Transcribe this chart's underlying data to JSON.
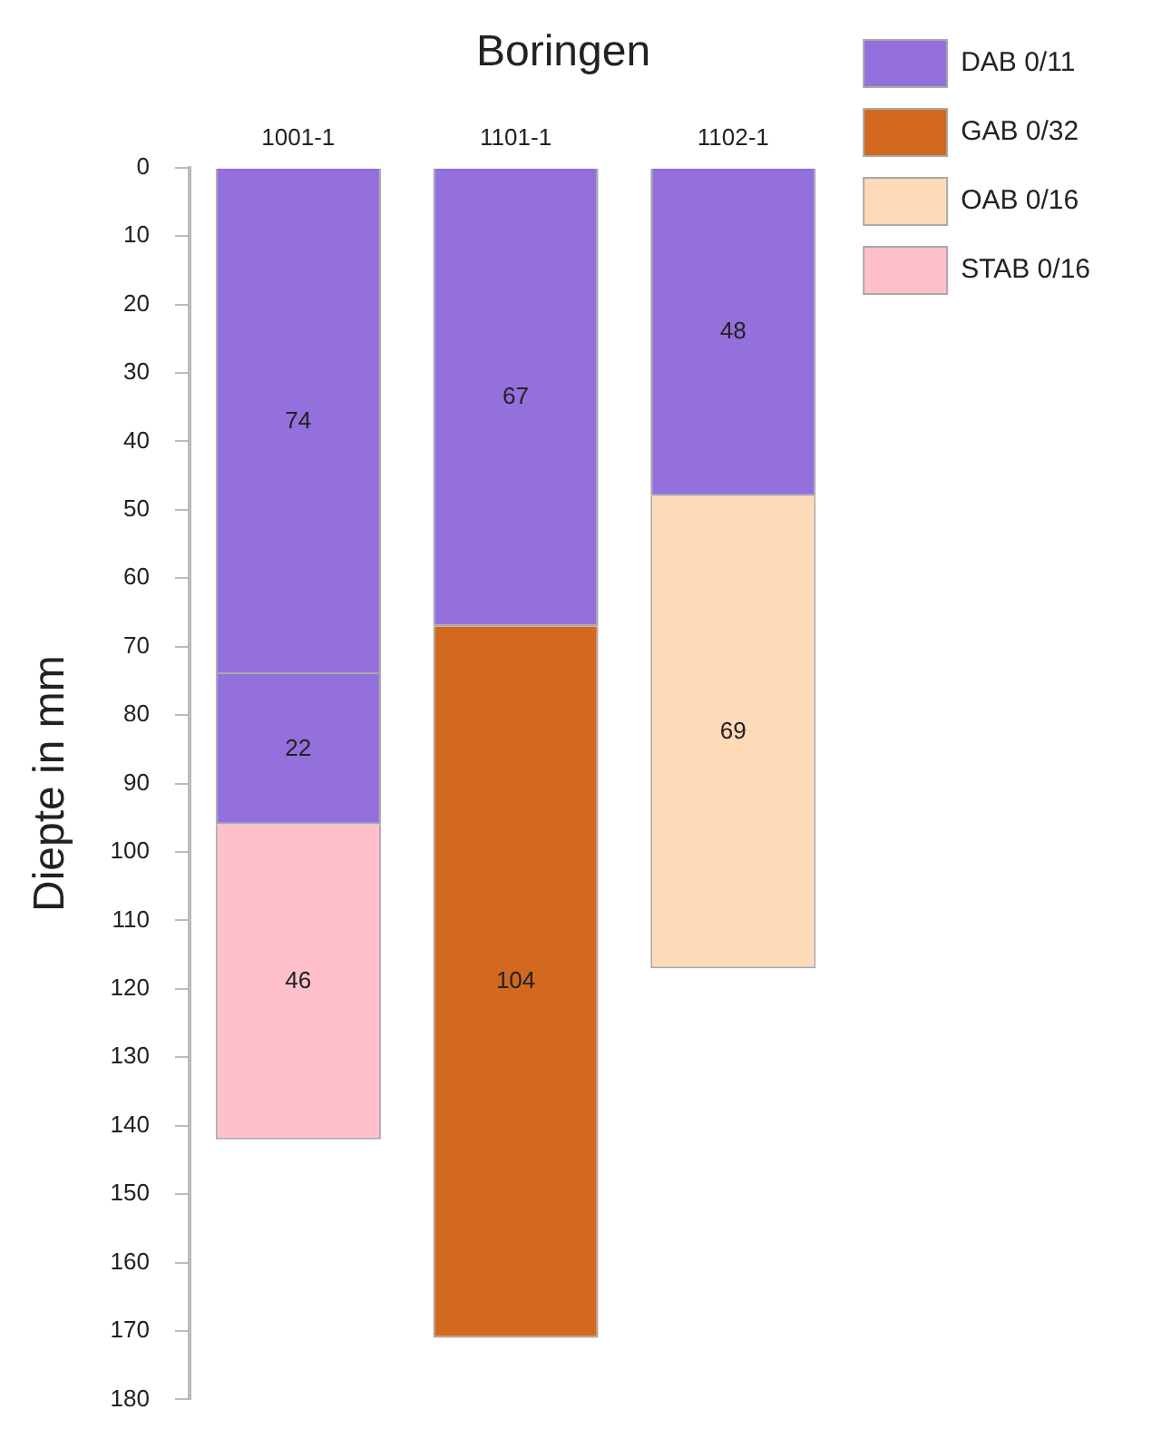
{
  "chart_data": {
    "type": "bar",
    "title": "Boringen",
    "ylabel": "Diepte in mm",
    "categories": [
      "1001-1",
      "1101-1",
      "1102-1"
    ],
    "series": [
      {
        "name": "DAB 0/11",
        "color": "#9370db",
        "values": [
          74,
          67,
          48
        ]
      },
      {
        "color": "#9370db",
        "values": [
          22,
          null,
          null
        ]
      },
      {
        "name": "GAB 0/32",
        "color": "#d2691e",
        "values": [
          null,
          104,
          null
        ]
      },
      {
        "name": "OAB 0/16",
        "color": "#ffdab9",
        "values": [
          null,
          null,
          69
        ]
      },
      {
        "name": "STAB 0/16",
        "color": "#ffc0cb",
        "values": [
          46,
          null,
          null
        ]
      }
    ],
    "stacked": true,
    "data_labels": true,
    "legend": "top right",
    "grid": false,
    "ylim": [
      180,
      0
    ],
    "yticks": [
      0,
      10,
      20,
      30,
      40,
      50,
      60,
      70,
      80,
      90,
      100,
      110,
      120,
      130,
      140,
      150,
      160,
      170,
      180
    ]
  }
}
